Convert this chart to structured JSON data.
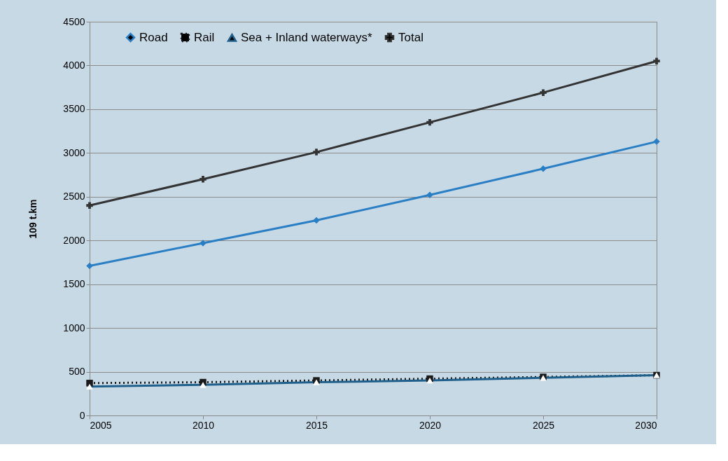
{
  "chart_data": {
    "type": "line",
    "ylabel": "109 t.km",
    "x": [
      2005,
      2010,
      2015,
      2020,
      2025,
      2030
    ],
    "xlim": [
      2005,
      2030
    ],
    "xticks": [
      2005,
      2010,
      2015,
      2020,
      2025,
      2030
    ],
    "ylim": [
      0,
      4500
    ],
    "yticks": [
      0,
      500,
      1000,
      1500,
      2000,
      2500,
      3000,
      3500,
      4000,
      4500
    ],
    "grid": "y",
    "legend": "top",
    "series": [
      {
        "name": "Road",
        "color": "#2a7fc4",
        "marker": "diamond",
        "line_style": "solid",
        "values": [
          1710,
          1970,
          2230,
          2520,
          2820,
          3130
        ]
      },
      {
        "name": "Rail",
        "color": "#1a1a1a",
        "marker": "square",
        "line_style": "dotted",
        "values": [
          370,
          380,
          400,
          420,
          440,
          460
        ]
      },
      {
        "name": "Sea + Inland waterways*",
        "color": "#1f5f8b",
        "marker": "triangle",
        "line_style": "solid",
        "values": [
          330,
          350,
          380,
          400,
          430,
          460
        ]
      },
      {
        "name": "Total",
        "color": "#333333",
        "marker": "cross",
        "line_style": "solid",
        "values": [
          2400,
          2700,
          3010,
          3350,
          3690,
          4050
        ]
      }
    ]
  }
}
